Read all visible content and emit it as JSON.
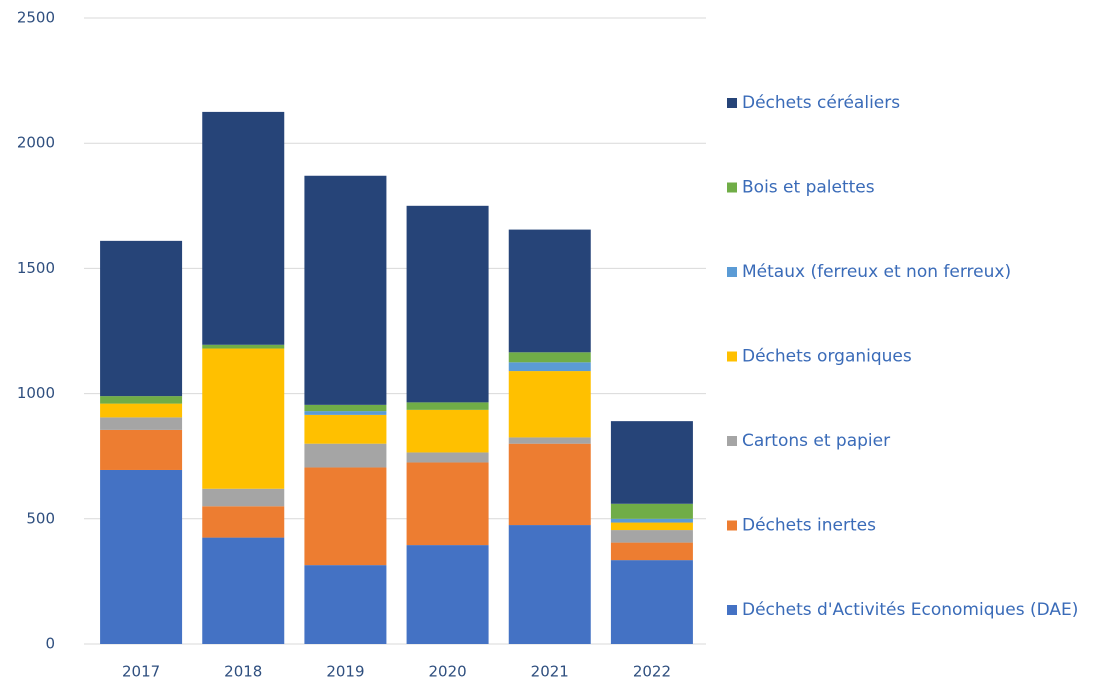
{
  "chart_data": {
    "type": "stacked_bar",
    "categories": [
      "2017",
      "2018",
      "2019",
      "2020",
      "2021",
      "2022"
    ],
    "series": [
      {
        "name": "Déchets d'Activités Economiques (DAE)",
        "color": "#4472c4",
        "values": [
          695,
          425,
          315,
          395,
          475,
          335
        ]
      },
      {
        "name": "Déchets inertes",
        "color": "#ed7d31",
        "values": [
          160,
          125,
          390,
          330,
          325,
          70
        ]
      },
      {
        "name": "Cartons et papier",
        "color": "#a5a5a5",
        "values": [
          50,
          70,
          95,
          40,
          25,
          50
        ]
      },
      {
        "name": "Déchets organiques",
        "color": "#ffc000",
        "values": [
          55,
          560,
          115,
          170,
          265,
          30
        ]
      },
      {
        "name": "Métaux (ferreux et non ferreux)",
        "color": "#5b9bd5",
        "values": [
          0,
          0,
          15,
          0,
          35,
          15
        ]
      },
      {
        "name": "Bois et palettes",
        "color": "#70ad47",
        "values": [
          30,
          15,
          25,
          30,
          40,
          60
        ]
      },
      {
        "name": "Déchets céréaliers",
        "color": "#264478",
        "values": [
          620,
          930,
          915,
          785,
          490,
          330
        ]
      }
    ],
    "ylim": [
      0,
      2500
    ],
    "yticks": [
      0,
      500,
      1000,
      1500,
      2000,
      2500
    ],
    "grid": true,
    "legend": "right"
  }
}
